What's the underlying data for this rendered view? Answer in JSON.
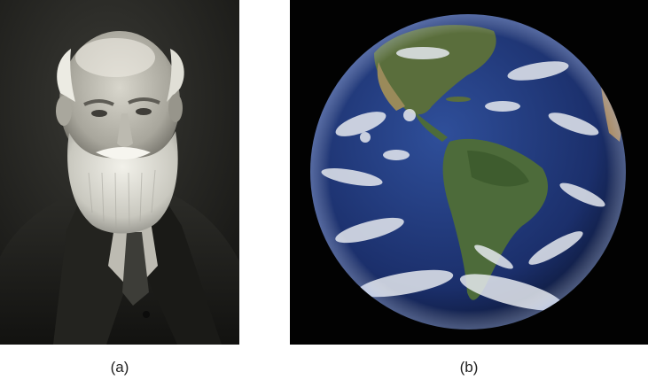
{
  "panels": [
    {
      "id": "a",
      "caption": "(a)",
      "subject": "sepia-portrait-bearded-man"
    },
    {
      "id": "b",
      "caption": "(b)",
      "subject": "earth-from-space-americas"
    }
  ],
  "colors": {
    "page_background": "#ffffff",
    "portrait_background": "#1f1f1c",
    "space_background": "#020202",
    "ocean": "#1b2f6b",
    "land": "#4d6b3a",
    "clouds": "#e6e9ef"
  }
}
